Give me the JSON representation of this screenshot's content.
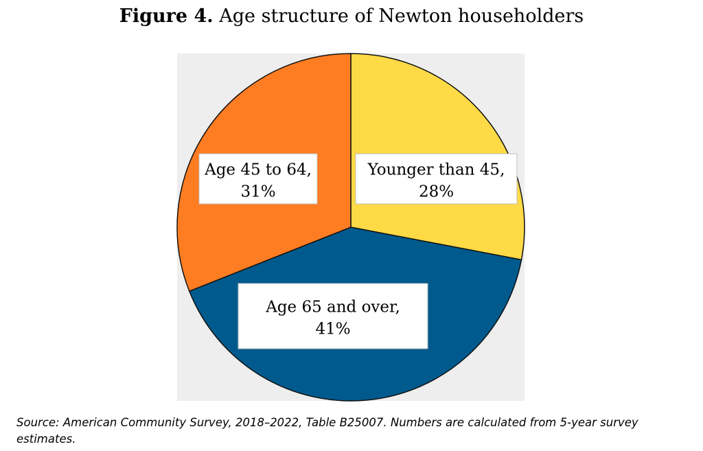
{
  "title": {
    "label": "Figure 4.",
    "text": "Age structure of Newton householders"
  },
  "chart_data": {
    "type": "pie",
    "title": "Figure 4. Age structure of Newton householders",
    "start_angle_deg": 0,
    "direction": "clockwise",
    "slices": [
      {
        "name": "Younger than 45",
        "value": 28,
        "label_line1": "Younger than 45,",
        "label_line2": "28%",
        "color": "#FEDA47"
      },
      {
        "name": "Age 65 and over",
        "value": 41,
        "label_line1": "Age 65 and over,",
        "label_line2": "41%",
        "color": "#015A8D"
      },
      {
        "name": "Age 45 to 64",
        "value": 31,
        "label_line1": "Age 45 to 64,",
        "label_line2": "31%",
        "color": "#FE7D22"
      }
    ],
    "plot_background": "#EEEEEE",
    "slice_border_color": "#111111"
  },
  "source": "Source: American Community Survey, 2018–2022, Table B25007. Numbers are calculated from 5-year survey estimates."
}
